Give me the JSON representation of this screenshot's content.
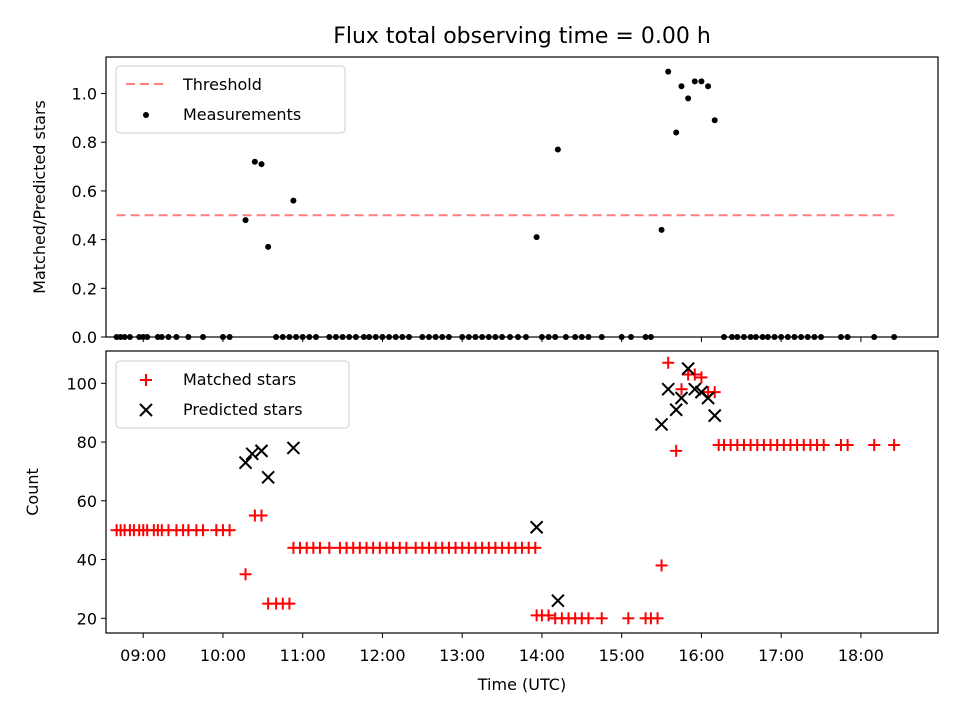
{
  "title": "Flux total observing time = 0.00 h",
  "colors": {
    "threshold": "#ff7f7f",
    "measurement": "#000000",
    "matched": "#ff0000",
    "predicted": "#000000"
  },
  "chart_data": [
    {
      "type": "scatter",
      "ylabel": "Matched/Predicted stars",
      "ylim": [
        0.0,
        1.15
      ],
      "yticks": [
        0.0,
        0.2,
        0.4,
        0.6,
        0.8,
        1.0
      ],
      "xlim": [
        "08:32",
        "18:58"
      ],
      "legend": {
        "position": "top-left",
        "entries": [
          "Threshold",
          "Measurements"
        ]
      },
      "threshold": {
        "name": "Threshold",
        "value": 0.5,
        "x_start": "08:40",
        "x_end": "18:25"
      },
      "series": [
        {
          "name": "Measurements",
          "points": [
            [
              "08:40",
              0
            ],
            [
              "08:43",
              0
            ],
            [
              "08:46",
              0
            ],
            [
              "08:50",
              0
            ],
            [
              "08:57",
              0
            ],
            [
              "09:00",
              0
            ],
            [
              "09:03",
              0
            ],
            [
              "09:11",
              0
            ],
            [
              "09:14",
              0
            ],
            [
              "09:19",
              0
            ],
            [
              "09:25",
              0
            ],
            [
              "09:34",
              0
            ],
            [
              "09:45",
              0
            ],
            [
              "10:00",
              0
            ],
            [
              "10:05",
              0
            ],
            [
              "10:17",
              0.48
            ],
            [
              "10:24",
              0.72
            ],
            [
              "10:29",
              0.71
            ],
            [
              "10:34",
              0.37
            ],
            [
              "10:40",
              0
            ],
            [
              "10:45",
              0
            ],
            [
              "10:50",
              0
            ],
            [
              "10:53",
              0.56
            ],
            [
              "10:55",
              0
            ],
            [
              "11:00",
              0
            ],
            [
              "11:05",
              0
            ],
            [
              "11:10",
              0
            ],
            [
              "11:20",
              0
            ],
            [
              "11:25",
              0
            ],
            [
              "11:30",
              0
            ],
            [
              "11:35",
              0
            ],
            [
              "11:40",
              0
            ],
            [
              "11:46",
              0
            ],
            [
              "11:50",
              0
            ],
            [
              "11:55",
              0
            ],
            [
              "12:00",
              0
            ],
            [
              "12:05",
              0
            ],
            [
              "12:10",
              0
            ],
            [
              "12:15",
              0
            ],
            [
              "12:20",
              0
            ],
            [
              "12:30",
              0
            ],
            [
              "12:35",
              0
            ],
            [
              "12:40",
              0
            ],
            [
              "12:45",
              0
            ],
            [
              "12:50",
              0
            ],
            [
              "13:00",
              0
            ],
            [
              "13:05",
              0
            ],
            [
              "13:10",
              0
            ],
            [
              "13:15",
              0
            ],
            [
              "13:20",
              0
            ],
            [
              "13:25",
              0
            ],
            [
              "13:30",
              0
            ],
            [
              "13:36",
              0
            ],
            [
              "13:42",
              0
            ],
            [
              "13:48",
              0
            ],
            [
              "13:56",
              0.41
            ],
            [
              "14:00",
              0
            ],
            [
              "14:05",
              0
            ],
            [
              "14:10",
              0
            ],
            [
              "14:12",
              0.77
            ],
            [
              "14:18",
              0
            ],
            [
              "14:25",
              0
            ],
            [
              "14:30",
              0
            ],
            [
              "14:35",
              0
            ],
            [
              "14:45",
              0
            ],
            [
              "15:00",
              0
            ],
            [
              "15:07",
              0
            ],
            [
              "15:18",
              0
            ],
            [
              "15:22",
              0
            ],
            [
              "15:30",
              0.44
            ],
            [
              "15:35",
              1.09
            ],
            [
              "15:41",
              0.84
            ],
            [
              "15:45",
              1.03
            ],
            [
              "15:50",
              0.98
            ],
            [
              "15:55",
              1.05
            ],
            [
              "16:00",
              1.05
            ],
            [
              "16:05",
              1.03
            ],
            [
              "16:10",
              0.89
            ],
            [
              "16:17",
              0
            ],
            [
              "16:23",
              0
            ],
            [
              "16:27",
              0
            ],
            [
              "16:32",
              0
            ],
            [
              "16:37",
              0
            ],
            [
              "16:41",
              0
            ],
            [
              "16:46",
              0
            ],
            [
              "16:50",
              0
            ],
            [
              "16:55",
              0
            ],
            [
              "17:00",
              0
            ],
            [
              "17:05",
              0
            ],
            [
              "17:10",
              0
            ],
            [
              "17:15",
              0
            ],
            [
              "17:20",
              0
            ],
            [
              "17:25",
              0
            ],
            [
              "17:30",
              0
            ],
            [
              "17:45",
              0
            ],
            [
              "17:50",
              0
            ],
            [
              "18:10",
              0
            ],
            [
              "18:25",
              0
            ]
          ]
        }
      ]
    },
    {
      "type": "scatter",
      "ylabel": "Count",
      "xlabel": "Time (UTC)",
      "ylim": [
        15,
        111
      ],
      "yticks": [
        20,
        40,
        60,
        80,
        100
      ],
      "xlim": [
        "08:32",
        "18:58"
      ],
      "xticks": [
        "09:00",
        "10:00",
        "11:00",
        "12:00",
        "13:00",
        "14:00",
        "15:00",
        "16:00",
        "17:00",
        "18:00"
      ],
      "legend": {
        "position": "top-left",
        "entries": [
          "Matched stars",
          "Predicted stars"
        ]
      },
      "series": [
        {
          "name": "Matched stars",
          "marker": "+",
          "points": [
            [
              "08:40",
              50
            ],
            [
              "08:43",
              50
            ],
            [
              "08:46",
              50
            ],
            [
              "08:50",
              50
            ],
            [
              "08:53",
              50
            ],
            [
              "08:57",
              50
            ],
            [
              "09:00",
              50
            ],
            [
              "09:03",
              50
            ],
            [
              "09:08",
              50
            ],
            [
              "09:11",
              50
            ],
            [
              "09:14",
              50
            ],
            [
              "09:19",
              50
            ],
            [
              "09:25",
              50
            ],
            [
              "09:30",
              50
            ],
            [
              "09:34",
              50
            ],
            [
              "09:40",
              50
            ],
            [
              "09:45",
              50
            ],
            [
              "09:55",
              50
            ],
            [
              "10:00",
              50
            ],
            [
              "10:05",
              50
            ],
            [
              "10:17",
              35
            ],
            [
              "10:24",
              55
            ],
            [
              "10:29",
              55
            ],
            [
              "10:34",
              25
            ],
            [
              "10:40",
              25
            ],
            [
              "10:45",
              25
            ],
            [
              "10:50",
              25
            ],
            [
              "10:53",
              44
            ],
            [
              "10:58",
              44
            ],
            [
              "11:03",
              44
            ],
            [
              "11:08",
              44
            ],
            [
              "11:13",
              44
            ],
            [
              "11:20",
              44
            ],
            [
              "11:28",
              44
            ],
            [
              "11:33",
              44
            ],
            [
              "11:38",
              44
            ],
            [
              "11:43",
              44
            ],
            [
              "11:48",
              44
            ],
            [
              "11:53",
              44
            ],
            [
              "11:58",
              44
            ],
            [
              "12:03",
              44
            ],
            [
              "12:08",
              44
            ],
            [
              "12:13",
              44
            ],
            [
              "12:18",
              44
            ],
            [
              "12:25",
              44
            ],
            [
              "12:30",
              44
            ],
            [
              "12:35",
              44
            ],
            [
              "12:40",
              44
            ],
            [
              "12:45",
              44
            ],
            [
              "12:50",
              44
            ],
            [
              "12:55",
              44
            ],
            [
              "13:00",
              44
            ],
            [
              "13:05",
              44
            ],
            [
              "13:10",
              44
            ],
            [
              "13:15",
              44
            ],
            [
              "13:20",
              44
            ],
            [
              "13:25",
              44
            ],
            [
              "13:30",
              44
            ],
            [
              "13:35",
              44
            ],
            [
              "13:40",
              44
            ],
            [
              "13:45",
              44
            ],
            [
              "13:50",
              44
            ],
            [
              "13:55",
              44
            ],
            [
              "13:56",
              21
            ],
            [
              "14:00",
              21
            ],
            [
              "14:05",
              21
            ],
            [
              "14:10",
              20
            ],
            [
              "14:15",
              20
            ],
            [
              "14:20",
              20
            ],
            [
              "14:25",
              20
            ],
            [
              "14:30",
              20
            ],
            [
              "14:35",
              20
            ],
            [
              "14:45",
              20
            ],
            [
              "15:05",
              20
            ],
            [
              "15:18",
              20
            ],
            [
              "15:22",
              20
            ],
            [
              "15:27",
              20
            ],
            [
              "15:30",
              38
            ],
            [
              "15:35",
              107
            ],
            [
              "15:41",
              77
            ],
            [
              "15:45",
              98
            ],
            [
              "15:50",
              103
            ],
            [
              "15:55",
              103
            ],
            [
              "16:00",
              102
            ],
            [
              "16:05",
              97
            ],
            [
              "16:10",
              97
            ],
            [
              "16:13",
              79
            ],
            [
              "16:17",
              79
            ],
            [
              "16:22",
              79
            ],
            [
              "16:27",
              79
            ],
            [
              "16:32",
              79
            ],
            [
              "16:37",
              79
            ],
            [
              "16:42",
              79
            ],
            [
              "16:47",
              79
            ],
            [
              "16:52",
              79
            ],
            [
              "16:57",
              79
            ],
            [
              "17:02",
              79
            ],
            [
              "17:07",
              79
            ],
            [
              "17:12",
              79
            ],
            [
              "17:17",
              79
            ],
            [
              "17:22",
              79
            ],
            [
              "17:27",
              79
            ],
            [
              "17:32",
              79
            ],
            [
              "17:45",
              79
            ],
            [
              "17:50",
              79
            ],
            [
              "18:10",
              79
            ],
            [
              "18:25",
              79
            ]
          ]
        },
        {
          "name": "Predicted stars",
          "marker": "x",
          "points": [
            [
              "10:17",
              73
            ],
            [
              "10:22",
              76
            ],
            [
              "10:29",
              77
            ],
            [
              "10:34",
              68
            ],
            [
              "10:53",
              78
            ],
            [
              "13:56",
              51
            ],
            [
              "14:12",
              26
            ],
            [
              "15:30",
              86
            ],
            [
              "15:35",
              98
            ],
            [
              "15:41",
              91
            ],
            [
              "15:45",
              95
            ],
            [
              "15:50",
              105
            ],
            [
              "15:55",
              98
            ],
            [
              "16:00",
              97
            ],
            [
              "16:05",
              95
            ],
            [
              "16:10",
              89
            ]
          ]
        }
      ]
    }
  ]
}
